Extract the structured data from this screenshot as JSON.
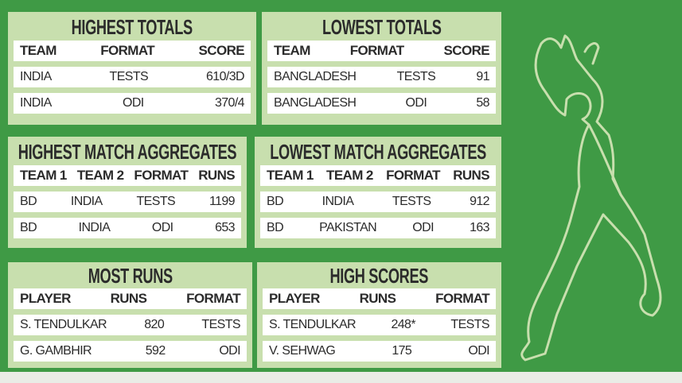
{
  "panels": [
    {
      "title": "HIGHEST TOTALS",
      "align": [
        "l",
        "c",
        "r"
      ],
      "cols": "1fr 1fr 1fr",
      "headers": [
        "TEAM",
        "FORMAT",
        "SCORE"
      ],
      "rows": [
        [
          "INDIA",
          "TESTS",
          "610/3D"
        ],
        [
          "INDIA",
          "ODI",
          "370/4"
        ]
      ]
    },
    {
      "title": "LOWEST TOTALS",
      "align": [
        "l",
        "c",
        "r"
      ],
      "cols": "1.1fr 1fr 1fr",
      "headers": [
        "TEAM",
        "FORMAT",
        "SCORE"
      ],
      "rows": [
        [
          "BANGLADESH",
          "TESTS",
          "91"
        ],
        [
          "BANGLADESH",
          "ODI",
          "58"
        ]
      ]
    },
    {
      "title": "HIGHEST MATCH AGGREGATES",
      "align": [
        "l",
        "c",
        "c",
        "r"
      ],
      "cols": "0.8fr 1fr 1fr 0.8fr",
      "headers": [
        "TEAM 1",
        "TEAM 2",
        "FORMAT",
        "RUNS"
      ],
      "rows": [
        [
          "BD",
          "INDIA",
          "TESTS",
          "1199"
        ],
        [
          "BD",
          "INDIA",
          "ODI",
          "653"
        ]
      ]
    },
    {
      "title": "LOWEST MATCH AGGREGATES",
      "align": [
        "l",
        "c",
        "c",
        "r"
      ],
      "cols": "0.8fr 1.1fr 1fr 0.7fr",
      "headers": [
        "TEAM 1",
        "TEAM 2",
        "FORMAT",
        "RUNS"
      ],
      "rows": [
        [
          "BD",
          "INDIA",
          "TESTS",
          "912"
        ],
        [
          "BD",
          "PAKISTAN",
          "ODI",
          "163"
        ]
      ]
    },
    {
      "title": "MOST RUNS",
      "align": [
        "l",
        "c",
        "r"
      ],
      "cols": "1.1fr 1fr 1fr",
      "headers": [
        "PLAYER",
        "RUNS",
        "FORMAT"
      ],
      "rows": [
        [
          "S. TENDULKAR",
          "820",
          "TESTS"
        ],
        [
          "G. GAMBHIR",
          "592",
          "ODI"
        ]
      ]
    },
    {
      "title": "HIGH SCORES",
      "align": [
        "l",
        "c",
        "r"
      ],
      "cols": "1.1fr 0.8fr 1fr",
      "headers": [
        "PLAYER",
        "RUNS",
        "FORMAT"
      ],
      "rows": [
        [
          "S. TENDULKAR",
          "248*",
          "TESTS"
        ],
        [
          "V. SEHWAG",
          "175",
          "ODI"
        ]
      ]
    }
  ],
  "colors": {
    "background": "#3f9a45",
    "panel": "#c8dfae",
    "row": "#ffffff",
    "text": "#2b2b2b",
    "figure": "#c8dfae"
  },
  "illustration": "bowler-silhouette"
}
